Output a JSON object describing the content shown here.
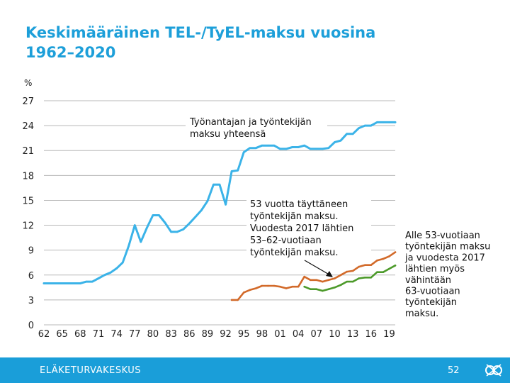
{
  "title_lines": [
    "Keskimääräinen TEL-/TyEL-maksu vuosina",
    "1962–2020"
  ],
  "footer": {
    "organization": "ELÄKETURVAKESKUS",
    "page_number": "52"
  },
  "colors": {
    "title": "#1d9fd9",
    "total": "#3bb3e8",
    "age53": "#d26a2a",
    "under53": "#4c9a2a",
    "grid": "#b8b8b8",
    "footer": "#1a9ed9"
  },
  "chart_data": {
    "type": "line",
    "ylabel": "%",
    "ylim": [
      0,
      27
    ],
    "yticks": [
      0,
      3,
      6,
      9,
      12,
      15,
      18,
      21,
      24,
      27
    ],
    "xlim": [
      1962,
      2020
    ],
    "xticks": [
      1962,
      1965,
      1968,
      1971,
      1974,
      1977,
      1980,
      1983,
      1986,
      1989,
      1992,
      1995,
      1998,
      2001,
      2004,
      2007,
      2010,
      2013,
      2016,
      2019
    ],
    "xtick_labels": [
      "62",
      "65",
      "68",
      "71",
      "74",
      "77",
      "80",
      "83",
      "86",
      "89",
      "92",
      "95",
      "98",
      "01",
      "04",
      "07",
      "10",
      "13",
      "16",
      "19"
    ],
    "grid": true,
    "annotations": {
      "total": [
        "Työnantajan ja työntekijän",
        "maksu yhteensä"
      ],
      "age53": [
        "53 vuotta täyttäneen",
        "työntekijän maksu.",
        "Vuodesta 2017 lähtien",
        "53–62-vuotiaan",
        "työntekijän maksu."
      ],
      "under53": [
        "Alle 53-vuotiaan",
        "työntekijän maksu",
        "ja vuodesta 2017",
        "lähtien myös",
        "vähintään",
        "63-vuotiaan",
        "työntekijän",
        "maksu."
      ]
    },
    "series": [
      {
        "name": "Työnantajan ja työntekijän maksu yhteensä",
        "key": "total",
        "x": [
          1962,
          1968,
          1969,
          1970,
          1971,
          1972,
          1973,
          1974,
          1975,
          1976,
          1977,
          1978,
          1979,
          1980,
          1981,
          1982,
          1983,
          1984,
          1985,
          1986,
          1987,
          1988,
          1989,
          1990,
          1991,
          1992,
          1993,
          1994,
          1995,
          1996,
          1997,
          1998,
          1999,
          2000,
          2001,
          2002,
          2003,
          2004,
          2005,
          2006,
          2007,
          2008,
          2009,
          2010,
          2011,
          2012,
          2013,
          2014,
          2015,
          2016,
          2017,
          2018,
          2019,
          2020
        ],
        "y": [
          5.0,
          5.0,
          5.2,
          5.2,
          5.6,
          6.0,
          6.3,
          6.8,
          7.5,
          9.5,
          12.0,
          10.0,
          11.7,
          13.2,
          13.2,
          12.3,
          11.2,
          11.2,
          11.5,
          12.2,
          13.0,
          13.8,
          14.9,
          16.9,
          16.9,
          14.5,
          18.5,
          18.6,
          20.8,
          21.3,
          21.3,
          21.6,
          21.6,
          21.6,
          21.2,
          21.2,
          21.4,
          21.4,
          21.6,
          21.2,
          21.2,
          21.2,
          21.3,
          22.0,
          22.2,
          23.0,
          23.0,
          23.7,
          24.0,
          24.0,
          24.4,
          24.4,
          24.4,
          24.4
        ]
      },
      {
        "name": "53 vuotta täyttäneen työntekijän maksu",
        "key": "age53",
        "x": [
          1993,
          1994,
          1995,
          1996,
          1997,
          1998,
          1999,
          2000,
          2001,
          2002,
          2003,
          2004,
          2005,
          2006,
          2007,
          2008,
          2009,
          2010,
          2011,
          2012,
          2013,
          2014,
          2015,
          2016,
          2017,
          2018,
          2019,
          2020
        ],
        "y": [
          3.0,
          3.0,
          3.9,
          4.2,
          4.4,
          4.7,
          4.7,
          4.7,
          4.6,
          4.4,
          4.6,
          4.6,
          5.8,
          5.4,
          5.4,
          5.2,
          5.4,
          5.6,
          6.0,
          6.4,
          6.5,
          7.0,
          7.2,
          7.2,
          7.75,
          7.95,
          8.25,
          8.75
        ]
      },
      {
        "name": "Alle 53-vuotiaan työntekijän maksu",
        "key": "under53",
        "x": [
          2005,
          2006,
          2007,
          2008,
          2009,
          2010,
          2011,
          2012,
          2013,
          2014,
          2015,
          2016,
          2017,
          2018,
          2019,
          2020
        ],
        "y": [
          4.6,
          4.3,
          4.3,
          4.1,
          4.3,
          4.5,
          4.8,
          5.2,
          5.2,
          5.6,
          5.7,
          5.7,
          6.35,
          6.35,
          6.75,
          7.15
        ]
      }
    ]
  }
}
